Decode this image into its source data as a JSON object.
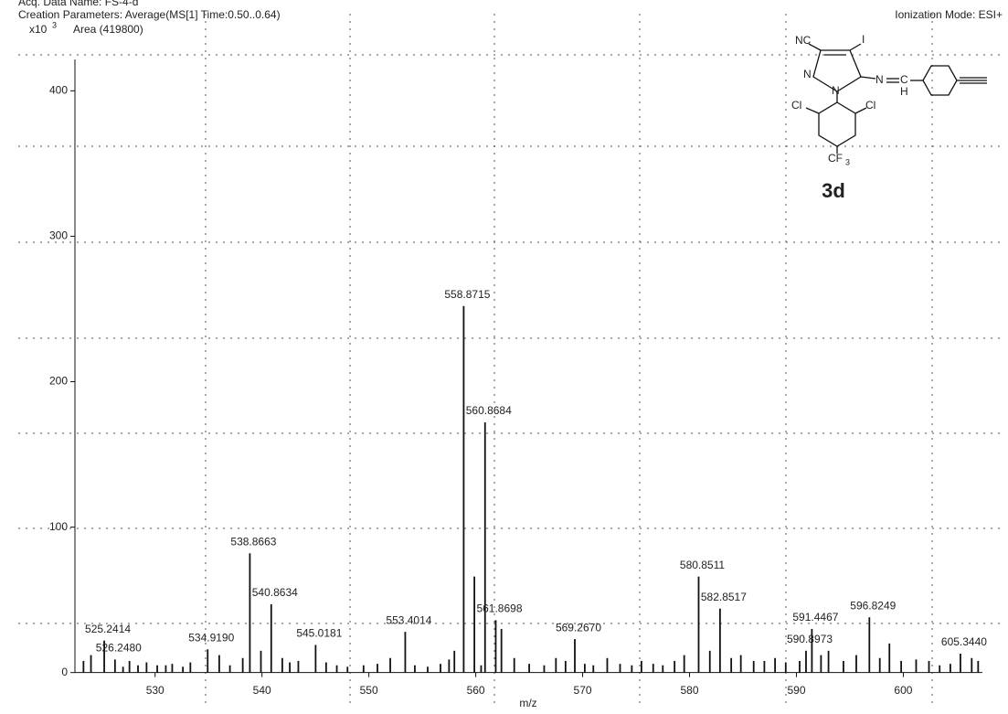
{
  "chart_data": {
    "type": "bar",
    "header": "Acq. Data Name: FS-4-d",
    "title": "Creation Parameters: Average(MS[1] Time:0.50..0.64)",
    "y_multiplier": "x10",
    "y_multiplier_exp": "3",
    "subtitle": "Area (419800)",
    "mode": "Ionization Mode: ESI+",
    "xlabel": "m/z",
    "color": "#111111",
    "xlim": [
      522.5,
      607.4
    ],
    "ylim": [
      -9,
      453
    ],
    "xticks": [
      530,
      540,
      550,
      560,
      570,
      580,
      590,
      600
    ],
    "yticks": [
      0,
      100,
      200,
      300,
      400
    ],
    "x": [
      523.3,
      524.0,
      525.2414,
      526.248,
      527.0,
      527.6,
      528.4,
      529.2,
      530.2,
      531.0,
      531.6,
      532.6,
      533.3,
      534.919,
      536.0,
      537.0,
      538.2,
      538.8663,
      539.9,
      540.8634,
      541.9,
      542.6,
      543.4,
      545.0181,
      546.0,
      547.0,
      548.0,
      549.5,
      550.8,
      552.0,
      553.4014,
      554.3,
      555.5,
      556.7,
      557.5,
      558.0,
      558.8715,
      559.87,
      560.5,
      560.8684,
      561.8698,
      562.4,
      563.6,
      565.0,
      566.4,
      567.5,
      568.4,
      569.267,
      570.2,
      571.0,
      572.3,
      573.5,
      574.6,
      575.5,
      576.6,
      577.5,
      578.6,
      579.5,
      580.8511,
      581.9,
      582.8517,
      583.9,
      584.8,
      586.0,
      587.0,
      588.0,
      589.0,
      590.3,
      590.8973,
      591.4467,
      592.3,
      593.0,
      594.4,
      595.6,
      596.8249,
      597.8,
      598.7,
      599.8,
      601.2,
      602.4,
      603.4,
      604.4,
      605.344,
      606.4,
      607.0
    ],
    "values": [
      8,
      12,
      22,
      9,
      4,
      8,
      5,
      7,
      5,
      5,
      6,
      4,
      7,
      16,
      12,
      5,
      10,
      82,
      15,
      47,
      10,
      7,
      8,
      19,
      7,
      5,
      4,
      5,
      6,
      10,
      28,
      5,
      4,
      6,
      9,
      15,
      252,
      66,
      5,
      172,
      36,
      30,
      10,
      6,
      5,
      10,
      8,
      23,
      6,
      5,
      10,
      6,
      5,
      8,
      6,
      5,
      8,
      12,
      66,
      15,
      44,
      10,
      12,
      8,
      8,
      10,
      7,
      8,
      15,
      30,
      12,
      15,
      8,
      12,
      38,
      10,
      20,
      8,
      9,
      8,
      5,
      6,
      13,
      10,
      8
    ],
    "x_labels": [
      null,
      null,
      "525.2414",
      "526.2480",
      null,
      null,
      null,
      null,
      null,
      null,
      null,
      null,
      null,
      "534.9190",
      null,
      null,
      null,
      "538.8663",
      null,
      "540.8634",
      null,
      null,
      null,
      "545.0181",
      null,
      null,
      null,
      null,
      null,
      null,
      "553.4014",
      null,
      null,
      null,
      null,
      null,
      "558.8715",
      null,
      null,
      "560.8684",
      "561.8698",
      null,
      null,
      null,
      null,
      null,
      null,
      "569.2670",
      null,
      null,
      null,
      null,
      null,
      null,
      null,
      null,
      null,
      null,
      "580.8511",
      null,
      "582.8517",
      null,
      null,
      null,
      null,
      null,
      null,
      null,
      "590.8973",
      "591.4467",
      null,
      null,
      null,
      null,
      "596.8249",
      null,
      null,
      null,
      null,
      null,
      null,
      null,
      "605.3440",
      null,
      null
    ]
  },
  "structure": {
    "compound": "3d",
    "nitrile": "NC",
    "iodo": "I",
    "n1": "N",
    "n2": "N",
    "n3": "N",
    "imine_c": "C",
    "imine_h": "H",
    "cl_left": "Cl",
    "cl_right": "Cl",
    "cf3": "CF",
    "cf3_sub": "3"
  }
}
